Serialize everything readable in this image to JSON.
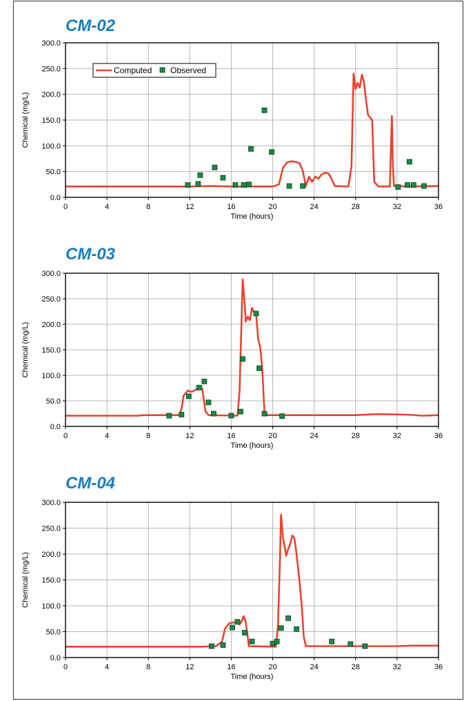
{
  "chart_data": [
    {
      "type": "line",
      "title": "CM-02",
      "xlabel": "Time (hours)",
      "ylabel": "Chemical (mg/L)",
      "xlim": [
        0,
        36
      ],
      "ylim": [
        0,
        300
      ],
      "xticks": [
        0,
        4,
        8,
        12,
        16,
        20,
        24,
        28,
        32,
        36
      ],
      "yticks": [
        "0.0",
        "50.0",
        "100.0",
        "150.0",
        "200.0",
        "250.0",
        "300.0"
      ],
      "grid": true,
      "legend": {
        "placement": "top-left",
        "entries": [
          "Computed",
          "Observed"
        ]
      },
      "series": [
        {
          "name": "Computed",
          "kind": "line",
          "color": "#e8432e",
          "points": [
            [
              0,
              21
            ],
            [
              12,
              21
            ],
            [
              14,
              22
            ],
            [
              16,
              21
            ],
            [
              20,
              21
            ],
            [
              20.6,
              25
            ],
            [
              21,
              58
            ],
            [
              21.4,
              68
            ],
            [
              21.8,
              70
            ],
            [
              22.2,
              69
            ],
            [
              22.6,
              66
            ],
            [
              22.9,
              52
            ],
            [
              23.2,
              22
            ],
            [
              23.5,
              40
            ],
            [
              23.8,
              30
            ],
            [
              24.1,
              40
            ],
            [
              24.4,
              36
            ],
            [
              24.7,
              44
            ],
            [
              25.1,
              48
            ],
            [
              25.4,
              46
            ],
            [
              25.7,
              35
            ],
            [
              26,
              22
            ],
            [
              27.3,
              21
            ],
            [
              27.6,
              60
            ],
            [
              27.8,
              240
            ],
            [
              28,
              210
            ],
            [
              28.2,
              222
            ],
            [
              28.4,
              213
            ],
            [
              28.6,
              238
            ],
            [
              28.8,
              225
            ],
            [
              29,
              190
            ],
            [
              29.2,
              160
            ],
            [
              29.6,
              150
            ],
            [
              29.8,
              30
            ],
            [
              30.2,
              21
            ],
            [
              31.3,
              21
            ],
            [
              31.5,
              158
            ],
            [
              31.6,
              60
            ],
            [
              31.7,
              22
            ],
            [
              33,
              21
            ],
            [
              36,
              22
            ]
          ]
        },
        {
          "name": "Observed",
          "kind": "scatter",
          "color": "#1b8a46",
          "x": [
            11.8,
            12.8,
            13,
            14.4,
            15.2,
            16.4,
            17.2,
            17.7,
            17.9,
            19.2,
            19.9,
            21.6,
            22.9,
            32.1,
            33,
            33.2,
            33.6,
            34.6
          ],
          "y": [
            24,
            26,
            43,
            58,
            38,
            24,
            24,
            25,
            94,
            169,
            88,
            22,
            22,
            20,
            24,
            69,
            24,
            22
          ]
        }
      ]
    },
    {
      "type": "line",
      "title": "CM-03",
      "xlabel": "Time (hours)",
      "ylabel": "Chemical (mg/L)",
      "xlim": [
        0,
        36
      ],
      "ylim": [
        0,
        300
      ],
      "xticks": [
        0,
        4,
        8,
        12,
        16,
        20,
        24,
        28,
        32,
        36
      ],
      "yticks": [
        "0.0",
        "50.0",
        "100.0",
        "150.0",
        "200.0",
        "250.0",
        "300.0"
      ],
      "grid": true,
      "series": [
        {
          "name": "Computed",
          "kind": "line",
          "color": "#e8432e",
          "points": [
            [
              0,
              21
            ],
            [
              7,
              21
            ],
            [
              7.5,
              22
            ],
            [
              11,
              22
            ],
            [
              11.2,
              35
            ],
            [
              11.4,
              60
            ],
            [
              11.8,
              70
            ],
            [
              12.2,
              68
            ],
            [
              12.6,
              72
            ],
            [
              12.9,
              78
            ],
            [
              13.2,
              74
            ],
            [
              13.5,
              30
            ],
            [
              13.8,
              22
            ],
            [
              16.6,
              21
            ],
            [
              16.8,
              70
            ],
            [
              17.1,
              288
            ],
            [
              17.3,
              240
            ],
            [
              17.4,
              205
            ],
            [
              17.6,
              215
            ],
            [
              17.8,
              208
            ],
            [
              18,
              232
            ],
            [
              18.2,
              224
            ],
            [
              18.4,
              220
            ],
            [
              18.6,
              170
            ],
            [
              18.8,
              155
            ],
            [
              19,
              110
            ],
            [
              19.2,
              30
            ],
            [
              19.5,
              22
            ],
            [
              28,
              22
            ],
            [
              30,
              24
            ],
            [
              33,
              23
            ],
            [
              34.5,
              21
            ],
            [
              36,
              22
            ]
          ]
        },
        {
          "name": "Observed",
          "kind": "scatter",
          "color": "#1b8a46",
          "x": [
            10,
            11.2,
            11.9,
            12.9,
            13.4,
            13.8,
            14.3,
            16,
            16.9,
            17.1,
            18.4,
            18.7,
            19.2,
            20.9
          ],
          "y": [
            21,
            23,
            59,
            76,
            88,
            47,
            25,
            21,
            29,
            132,
            221,
            114,
            25,
            20
          ]
        }
      ]
    },
    {
      "type": "line",
      "title": "CM-04",
      "xlabel": "Time (hours)",
      "ylabel": "Chemical (mg/L)",
      "xlim": [
        0,
        36
      ],
      "ylim": [
        0,
        300
      ],
      "xticks": [
        0,
        4,
        8,
        12,
        16,
        20,
        24,
        28,
        32,
        36
      ],
      "yticks": [
        "0.0",
        "50.0",
        "100.0",
        "150.0",
        "200.0",
        "250.0",
        "300.0"
      ],
      "grid": true,
      "series": [
        {
          "name": "Computed",
          "kind": "line",
          "color": "#e8432e",
          "points": [
            [
              0,
              21
            ],
            [
              13,
              21
            ],
            [
              14.5,
              22
            ],
            [
              15.1,
              30
            ],
            [
              15.4,
              56
            ],
            [
              15.8,
              66
            ],
            [
              16.2,
              68
            ],
            [
              16.5,
              67
            ],
            [
              16.8,
              64
            ],
            [
              17,
              70
            ],
            [
              17.2,
              80
            ],
            [
              17.4,
              68
            ],
            [
              17.7,
              22
            ],
            [
              20.3,
              21
            ],
            [
              20.5,
              60
            ],
            [
              20.7,
              190
            ],
            [
              20.8,
              276
            ],
            [
              21,
              230
            ],
            [
              21.1,
              220
            ],
            [
              21.3,
              197
            ],
            [
              21.5,
              210
            ],
            [
              21.7,
              220
            ],
            [
              21.9,
              236
            ],
            [
              22.1,
              230
            ],
            [
              22.3,
              200
            ],
            [
              22.6,
              145
            ],
            [
              22.8,
              100
            ],
            [
              23,
              40
            ],
            [
              23.2,
              22
            ],
            [
              32,
              22
            ],
            [
              33.5,
              23
            ],
            [
              36,
              23
            ]
          ]
        },
        {
          "name": "Observed",
          "kind": "scatter",
          "color": "#1b8a46",
          "x": [
            14.1,
            15.2,
            16.1,
            16.6,
            17.3,
            18,
            20,
            20.4,
            20.8,
            21.5,
            22.3,
            25.7,
            27.5,
            28.9
          ],
          "y": [
            22,
            24,
            58,
            69,
            48,
            31,
            27,
            31,
            57,
            76,
            55,
            31,
            26,
            22
          ]
        }
      ]
    }
  ]
}
